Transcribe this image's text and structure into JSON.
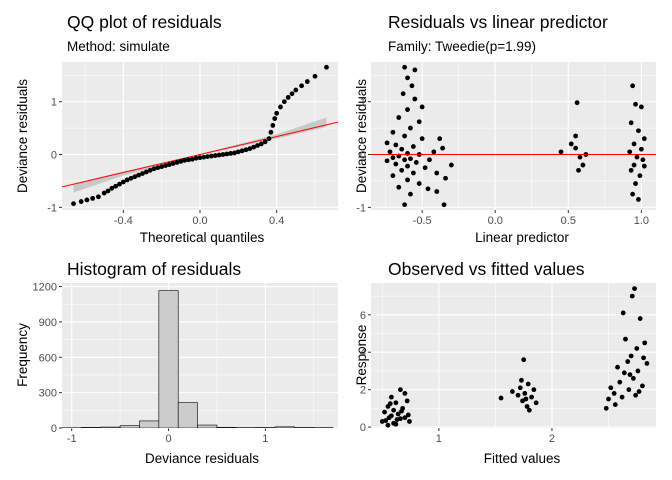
{
  "panels": [
    {
      "id": "qq",
      "title": "QQ plot of residuals",
      "subtitle": "Method: simulate",
      "xlabel": "Theoretical quantiles",
      "ylabel": "Deviance residuals"
    },
    {
      "id": "resid_lp",
      "title": "Residuals vs linear predictor",
      "subtitle": "Family: Tweedie(p=1.99)",
      "xlabel": "Linear predictor",
      "ylabel": "Deviance residuals"
    },
    {
      "id": "hist",
      "title": "Histogram of residuals",
      "subtitle": "",
      "xlabel": "Deviance residuals",
      "ylabel": "Frequency"
    },
    {
      "id": "obs_fit",
      "title": "Observed vs fitted values",
      "subtitle": "",
      "xlabel": "Fitted values",
      "ylabel": "Response"
    }
  ],
  "colors": {
    "panel_bg": "#ebebeb",
    "grid_major": "#ffffff",
    "points": "#000000",
    "reference_line": "#ff0000",
    "confidence_band": "#bfbfbf",
    "histogram_fill": "#cccccc",
    "histogram_border": "#000000"
  },
  "chart_data": [
    {
      "type": "scatter",
      "title": "QQ plot of residuals",
      "subtitle": "Method: simulate",
      "xlabel": "Theoretical quantiles",
      "ylabel": "Deviance residuals",
      "xlim": [
        -0.72,
        0.72
      ],
      "ylim": [
        -1.05,
        1.75
      ],
      "xticks": [
        -0.4,
        0.0,
        0.4
      ],
      "yticks": [
        -1,
        0,
        1
      ],
      "xtick_labels": [
        "-0.4",
        "0.0",
        "0.4"
      ],
      "ytick_labels": [
        "-1",
        "0",
        "1"
      ],
      "grid": true,
      "reference_line": {
        "slope": 0.85,
        "intercept": 0.0
      },
      "confidence_band": {
        "x": [
          -0.66,
          -0.4,
          0.0,
          0.4,
          0.66
        ],
        "lower": [
          -0.72,
          -0.4,
          -0.01,
          0.3,
          0.52
        ],
        "upper": [
          -0.55,
          -0.32,
          0.01,
          0.38,
          0.7
        ]
      },
      "points": [
        {
          "x": -0.66,
          "y": -0.93
        },
        {
          "x": -0.62,
          "y": -0.89
        },
        {
          "x": -0.59,
          "y": -0.86
        },
        {
          "x": -0.56,
          "y": -0.83
        },
        {
          "x": -0.53,
          "y": -0.8
        },
        {
          "x": -0.5,
          "y": -0.73
        },
        {
          "x": -0.48,
          "y": -0.69
        },
        {
          "x": -0.46,
          "y": -0.64
        },
        {
          "x": -0.44,
          "y": -0.6
        },
        {
          "x": -0.42,
          "y": -0.56
        },
        {
          "x": -0.4,
          "y": -0.52
        },
        {
          "x": -0.38,
          "y": -0.48
        },
        {
          "x": -0.36,
          "y": -0.45
        },
        {
          "x": -0.34,
          "y": -0.42
        },
        {
          "x": -0.32,
          "y": -0.39
        },
        {
          "x": -0.3,
          "y": -0.36
        },
        {
          "x": -0.28,
          "y": -0.33
        },
        {
          "x": -0.26,
          "y": -0.3
        },
        {
          "x": -0.24,
          "y": -0.27
        },
        {
          "x": -0.22,
          "y": -0.25
        },
        {
          "x": -0.2,
          "y": -0.23
        },
        {
          "x": -0.18,
          "y": -0.21
        },
        {
          "x": -0.16,
          "y": -0.19
        },
        {
          "x": -0.14,
          "y": -0.17
        },
        {
          "x": -0.12,
          "y": -0.15
        },
        {
          "x": -0.1,
          "y": -0.13
        },
        {
          "x": -0.08,
          "y": -0.11
        },
        {
          "x": -0.06,
          "y": -0.1
        },
        {
          "x": -0.04,
          "y": -0.09
        },
        {
          "x": -0.02,
          "y": -0.07
        },
        {
          "x": 0.0,
          "y": -0.06
        },
        {
          "x": 0.02,
          "y": -0.05
        },
        {
          "x": 0.04,
          "y": -0.04
        },
        {
          "x": 0.06,
          "y": -0.03
        },
        {
          "x": 0.08,
          "y": -0.02
        },
        {
          "x": 0.1,
          "y": -0.01
        },
        {
          "x": 0.12,
          "y": 0.0
        },
        {
          "x": 0.14,
          "y": 0.01
        },
        {
          "x": 0.16,
          "y": 0.02
        },
        {
          "x": 0.18,
          "y": 0.03
        },
        {
          "x": 0.2,
          "y": 0.05
        },
        {
          "x": 0.22,
          "y": 0.07
        },
        {
          "x": 0.24,
          "y": 0.09
        },
        {
          "x": 0.26,
          "y": 0.11
        },
        {
          "x": 0.28,
          "y": 0.14
        },
        {
          "x": 0.3,
          "y": 0.17
        },
        {
          "x": 0.32,
          "y": 0.2
        },
        {
          "x": 0.34,
          "y": 0.24
        },
        {
          "x": 0.36,
          "y": 0.3
        },
        {
          "x": 0.37,
          "y": 0.42
        },
        {
          "x": 0.38,
          "y": 0.55
        },
        {
          "x": 0.39,
          "y": 0.68
        },
        {
          "x": 0.4,
          "y": 0.78
        },
        {
          "x": 0.42,
          "y": 0.9
        },
        {
          "x": 0.44,
          "y": 1.0
        },
        {
          "x": 0.46,
          "y": 1.08
        },
        {
          "x": 0.48,
          "y": 1.15
        },
        {
          "x": 0.5,
          "y": 1.22
        },
        {
          "x": 0.53,
          "y": 1.3
        },
        {
          "x": 0.56,
          "y": 1.38
        },
        {
          "x": 0.6,
          "y": 1.48
        },
        {
          "x": 0.66,
          "y": 1.65
        }
      ]
    },
    {
      "type": "scatter",
      "title": "Residuals vs linear predictor",
      "subtitle": "Family: Tweedie(p=1.99)",
      "xlabel": "Linear predictor",
      "ylabel": "Deviance residuals",
      "xlim": [
        -0.85,
        1.1
      ],
      "ylim": [
        -1.05,
        1.75
      ],
      "xticks": [
        -0.5,
        0.0,
        0.5,
        1.0
      ],
      "yticks": [
        -1,
        0,
        1
      ],
      "xtick_labels": [
        "-0.5",
        "0.0",
        "0.5",
        "1.0"
      ],
      "ytick_labels": [
        "-1",
        "0",
        "1"
      ],
      "grid": true,
      "reference_line": {
        "slope": 0,
        "intercept": 0
      },
      "points": [
        {
          "x": -0.62,
          "y": 1.65
        },
        {
          "x": -0.6,
          "y": 1.45
        },
        {
          "x": -0.57,
          "y": 1.3
        },
        {
          "x": -0.63,
          "y": 1.15
        },
        {
          "x": -0.55,
          "y": 1.05
        },
        {
          "x": -0.6,
          "y": 0.85
        },
        {
          "x": -0.66,
          "y": 0.7
        },
        {
          "x": -0.52,
          "y": 0.62
        },
        {
          "x": -0.58,
          "y": 0.5
        },
        {
          "x": -0.7,
          "y": 0.42
        },
        {
          "x": -0.62,
          "y": 0.35
        },
        {
          "x": -0.5,
          "y": 0.3
        },
        {
          "x": -0.74,
          "y": 0.22
        },
        {
          "x": -0.68,
          "y": 0.18
        },
        {
          "x": -0.56,
          "y": 0.15
        },
        {
          "x": -0.64,
          "y": 0.1
        },
        {
          "x": -0.72,
          "y": 0.05
        },
        {
          "x": -0.6,
          "y": 0.02
        },
        {
          "x": -0.52,
          "y": 0.0
        },
        {
          "x": -0.66,
          "y": -0.03
        },
        {
          "x": -0.7,
          "y": -0.06
        },
        {
          "x": -0.58,
          "y": -0.08
        },
        {
          "x": -0.62,
          "y": -0.1
        },
        {
          "x": -0.74,
          "y": -0.12
        },
        {
          "x": -0.54,
          "y": -0.15
        },
        {
          "x": -0.68,
          "y": -0.18
        },
        {
          "x": -0.6,
          "y": -0.22
        },
        {
          "x": -0.48,
          "y": -0.25
        },
        {
          "x": -0.64,
          "y": -0.3
        },
        {
          "x": -0.56,
          "y": -0.35
        },
        {
          "x": -0.7,
          "y": -0.4
        },
        {
          "x": -0.6,
          "y": -0.48
        },
        {
          "x": -0.52,
          "y": -0.55
        },
        {
          "x": -0.66,
          "y": -0.62
        },
        {
          "x": -0.58,
          "y": -0.75
        },
        {
          "x": -0.62,
          "y": -0.95
        },
        {
          "x": -0.45,
          "y": -0.1
        },
        {
          "x": -0.42,
          "y": 0.05
        },
        {
          "x": -0.4,
          "y": -0.35
        },
        {
          "x": -0.36,
          "y": 0.12
        },
        {
          "x": -0.34,
          "y": -0.45
        },
        {
          "x": -0.46,
          "y": -0.65
        },
        {
          "x": -0.4,
          "y": -0.7
        },
        {
          "x": -0.35,
          "y": -0.95
        },
        {
          "x": -0.3,
          "y": -0.2
        },
        {
          "x": -0.38,
          "y": 0.3
        },
        {
          "x": -0.55,
          "y": 1.6
        },
        {
          "x": -0.5,
          "y": 0.9
        },
        {
          "x": 0.45,
          "y": 0.05
        },
        {
          "x": 0.52,
          "y": 0.2
        },
        {
          "x": 0.55,
          "y": 0.35
        },
        {
          "x": 0.58,
          "y": -0.05
        },
        {
          "x": 0.6,
          "y": -0.2
        },
        {
          "x": 0.57,
          "y": -0.3
        },
        {
          "x": 0.62,
          "y": 0.0
        },
        {
          "x": 0.55,
          "y": 0.12
        },
        {
          "x": 0.56,
          "y": 0.98
        },
        {
          "x": 0.94,
          "y": 1.3
        },
        {
          "x": 0.96,
          "y": 0.95
        },
        {
          "x": 1.0,
          "y": 0.9
        },
        {
          "x": 0.93,
          "y": 0.6
        },
        {
          "x": 0.98,
          "y": 0.45
        },
        {
          "x": 1.02,
          "y": 0.3
        },
        {
          "x": 0.95,
          "y": 0.2
        },
        {
          "x": 1.0,
          "y": 0.1
        },
        {
          "x": 0.92,
          "y": 0.05
        },
        {
          "x": 0.97,
          "y": -0.05
        },
        {
          "x": 1.01,
          "y": -0.1
        },
        {
          "x": 0.95,
          "y": -0.2
        },
        {
          "x": 0.93,
          "y": -0.3
        },
        {
          "x": 0.99,
          "y": -0.4
        },
        {
          "x": 0.96,
          "y": -0.55
        },
        {
          "x": 0.94,
          "y": -0.75
        },
        {
          "x": 0.98,
          "y": -0.85
        },
        {
          "x": 1.02,
          "y": -0.22
        }
      ]
    },
    {
      "type": "bar",
      "title": "Histogram of residuals",
      "xlabel": "Deviance residuals",
      "ylabel": "Frequency",
      "xlim": [
        -1.1,
        1.75
      ],
      "ylim": [
        0,
        1230
      ],
      "xticks": [
        -1,
        0,
        1
      ],
      "yticks": [
        0,
        300,
        600,
        900,
        1200
      ],
      "xtick_labels": [
        "-1",
        "0",
        "1"
      ],
      "ytick_labels": [
        "0",
        "300",
        "600",
        "900",
        "1200"
      ],
      "grid": true,
      "bin_width": 0.2,
      "bins": [
        {
          "center": -1.0,
          "count": 2
        },
        {
          "center": -0.8,
          "count": 5
        },
        {
          "center": -0.6,
          "count": 8
        },
        {
          "center": -0.4,
          "count": 20
        },
        {
          "center": -0.2,
          "count": 60
        },
        {
          "center": 0.0,
          "count": 320
        },
        {
          "center": 0.0,
          "count": 1165,
          "note_index": 0
        },
        {
          "center": 0.2,
          "count": 215
        },
        {
          "center": 0.4,
          "count": 25
        },
        {
          "center": 0.6,
          "count": 6
        },
        {
          "center": 0.8,
          "count": 3
        },
        {
          "center": 1.0,
          "count": 4
        },
        {
          "center": 1.2,
          "count": 10
        },
        {
          "center": 1.4,
          "count": 4
        },
        {
          "center": 1.6,
          "count": 3
        }
      ]
    },
    {
      "type": "scatter",
      "title": "Observed vs fitted values",
      "xlabel": "Fitted values",
      "ylabel": "Response",
      "xlim": [
        0.4,
        2.92
      ],
      "ylim": [
        -0.05,
        7.7
      ],
      "xticks": [
        1,
        2
      ],
      "yticks": [
        0,
        2,
        4,
        6
      ],
      "xtick_labels": [
        "1",
        "2"
      ],
      "ytick_labels": [
        "0",
        "2",
        "4",
        "6"
      ],
      "grid": true,
      "points": [
        {
          "x": 0.5,
          "y": 0.3
        },
        {
          "x": 0.52,
          "y": 0.8
        },
        {
          "x": 0.55,
          "y": 1.1
        },
        {
          "x": 0.56,
          "y": 0.5
        },
        {
          "x": 0.58,
          "y": 1.6
        },
        {
          "x": 0.6,
          "y": 0.2
        },
        {
          "x": 0.6,
          "y": 0.9
        },
        {
          "x": 0.62,
          "y": 1.3
        },
        {
          "x": 0.63,
          "y": 0.4
        },
        {
          "x": 0.64,
          "y": 0.7
        },
        {
          "x": 0.66,
          "y": 2.0
        },
        {
          "x": 0.68,
          "y": 1.0
        },
        {
          "x": 0.7,
          "y": 0.5
        },
        {
          "x": 0.72,
          "y": 1.4
        },
        {
          "x": 0.74,
          "y": 0.3
        },
        {
          "x": 0.55,
          "y": 0.1
        },
        {
          "x": 0.58,
          "y": 0.6
        },
        {
          "x": 0.62,
          "y": 0.15
        },
        {
          "x": 0.66,
          "y": 0.45
        },
        {
          "x": 0.7,
          "y": 1.8
        },
        {
          "x": 0.53,
          "y": 0.35
        },
        {
          "x": 0.67,
          "y": 0.85
        },
        {
          "x": 0.57,
          "y": 1.25
        },
        {
          "x": 0.73,
          "y": 0.65
        },
        {
          "x": 1.55,
          "y": 1.55
        },
        {
          "x": 1.65,
          "y": 1.9
        },
        {
          "x": 1.7,
          "y": 1.7
        },
        {
          "x": 1.72,
          "y": 2.1
        },
        {
          "x": 1.74,
          "y": 1.4
        },
        {
          "x": 1.75,
          "y": 3.6
        },
        {
          "x": 1.76,
          "y": 1.8
        },
        {
          "x": 1.78,
          "y": 1.1
        },
        {
          "x": 1.79,
          "y": 2.3
        },
        {
          "x": 1.8,
          "y": 0.9
        },
        {
          "x": 1.82,
          "y": 1.6
        },
        {
          "x": 1.84,
          "y": 2.0
        },
        {
          "x": 1.86,
          "y": 1.3
        },
        {
          "x": 1.77,
          "y": 1.5
        },
        {
          "x": 1.73,
          "y": 2.5
        },
        {
          "x": 2.48,
          "y": 1.0
        },
        {
          "x": 2.5,
          "y": 1.5
        },
        {
          "x": 2.52,
          "y": 2.1
        },
        {
          "x": 2.55,
          "y": 1.8
        },
        {
          "x": 2.58,
          "y": 3.2
        },
        {
          "x": 2.6,
          "y": 2.4
        },
        {
          "x": 2.62,
          "y": 1.6
        },
        {
          "x": 2.64,
          "y": 2.9
        },
        {
          "x": 2.65,
          "y": 4.7
        },
        {
          "x": 2.67,
          "y": 3.5
        },
        {
          "x": 2.68,
          "y": 2.0
        },
        {
          "x": 2.7,
          "y": 3.8
        },
        {
          "x": 2.72,
          "y": 2.6
        },
        {
          "x": 2.73,
          "y": 7.4
        },
        {
          "x": 2.74,
          "y": 1.7
        },
        {
          "x": 2.75,
          "y": 4.2
        },
        {
          "x": 2.76,
          "y": 3.0
        },
        {
          "x": 2.78,
          "y": 5.8
        },
        {
          "x": 2.8,
          "y": 2.2
        },
        {
          "x": 2.82,
          "y": 4.5
        },
        {
          "x": 2.84,
          "y": 3.4
        },
        {
          "x": 2.56,
          "y": 1.2
        },
        {
          "x": 2.63,
          "y": 6.1
        },
        {
          "x": 2.69,
          "y": 2.8
        },
        {
          "x": 2.77,
          "y": 1.9
        },
        {
          "x": 2.81,
          "y": 3.7
        },
        {
          "x": 2.71,
          "y": 7.0
        }
      ]
    }
  ]
}
